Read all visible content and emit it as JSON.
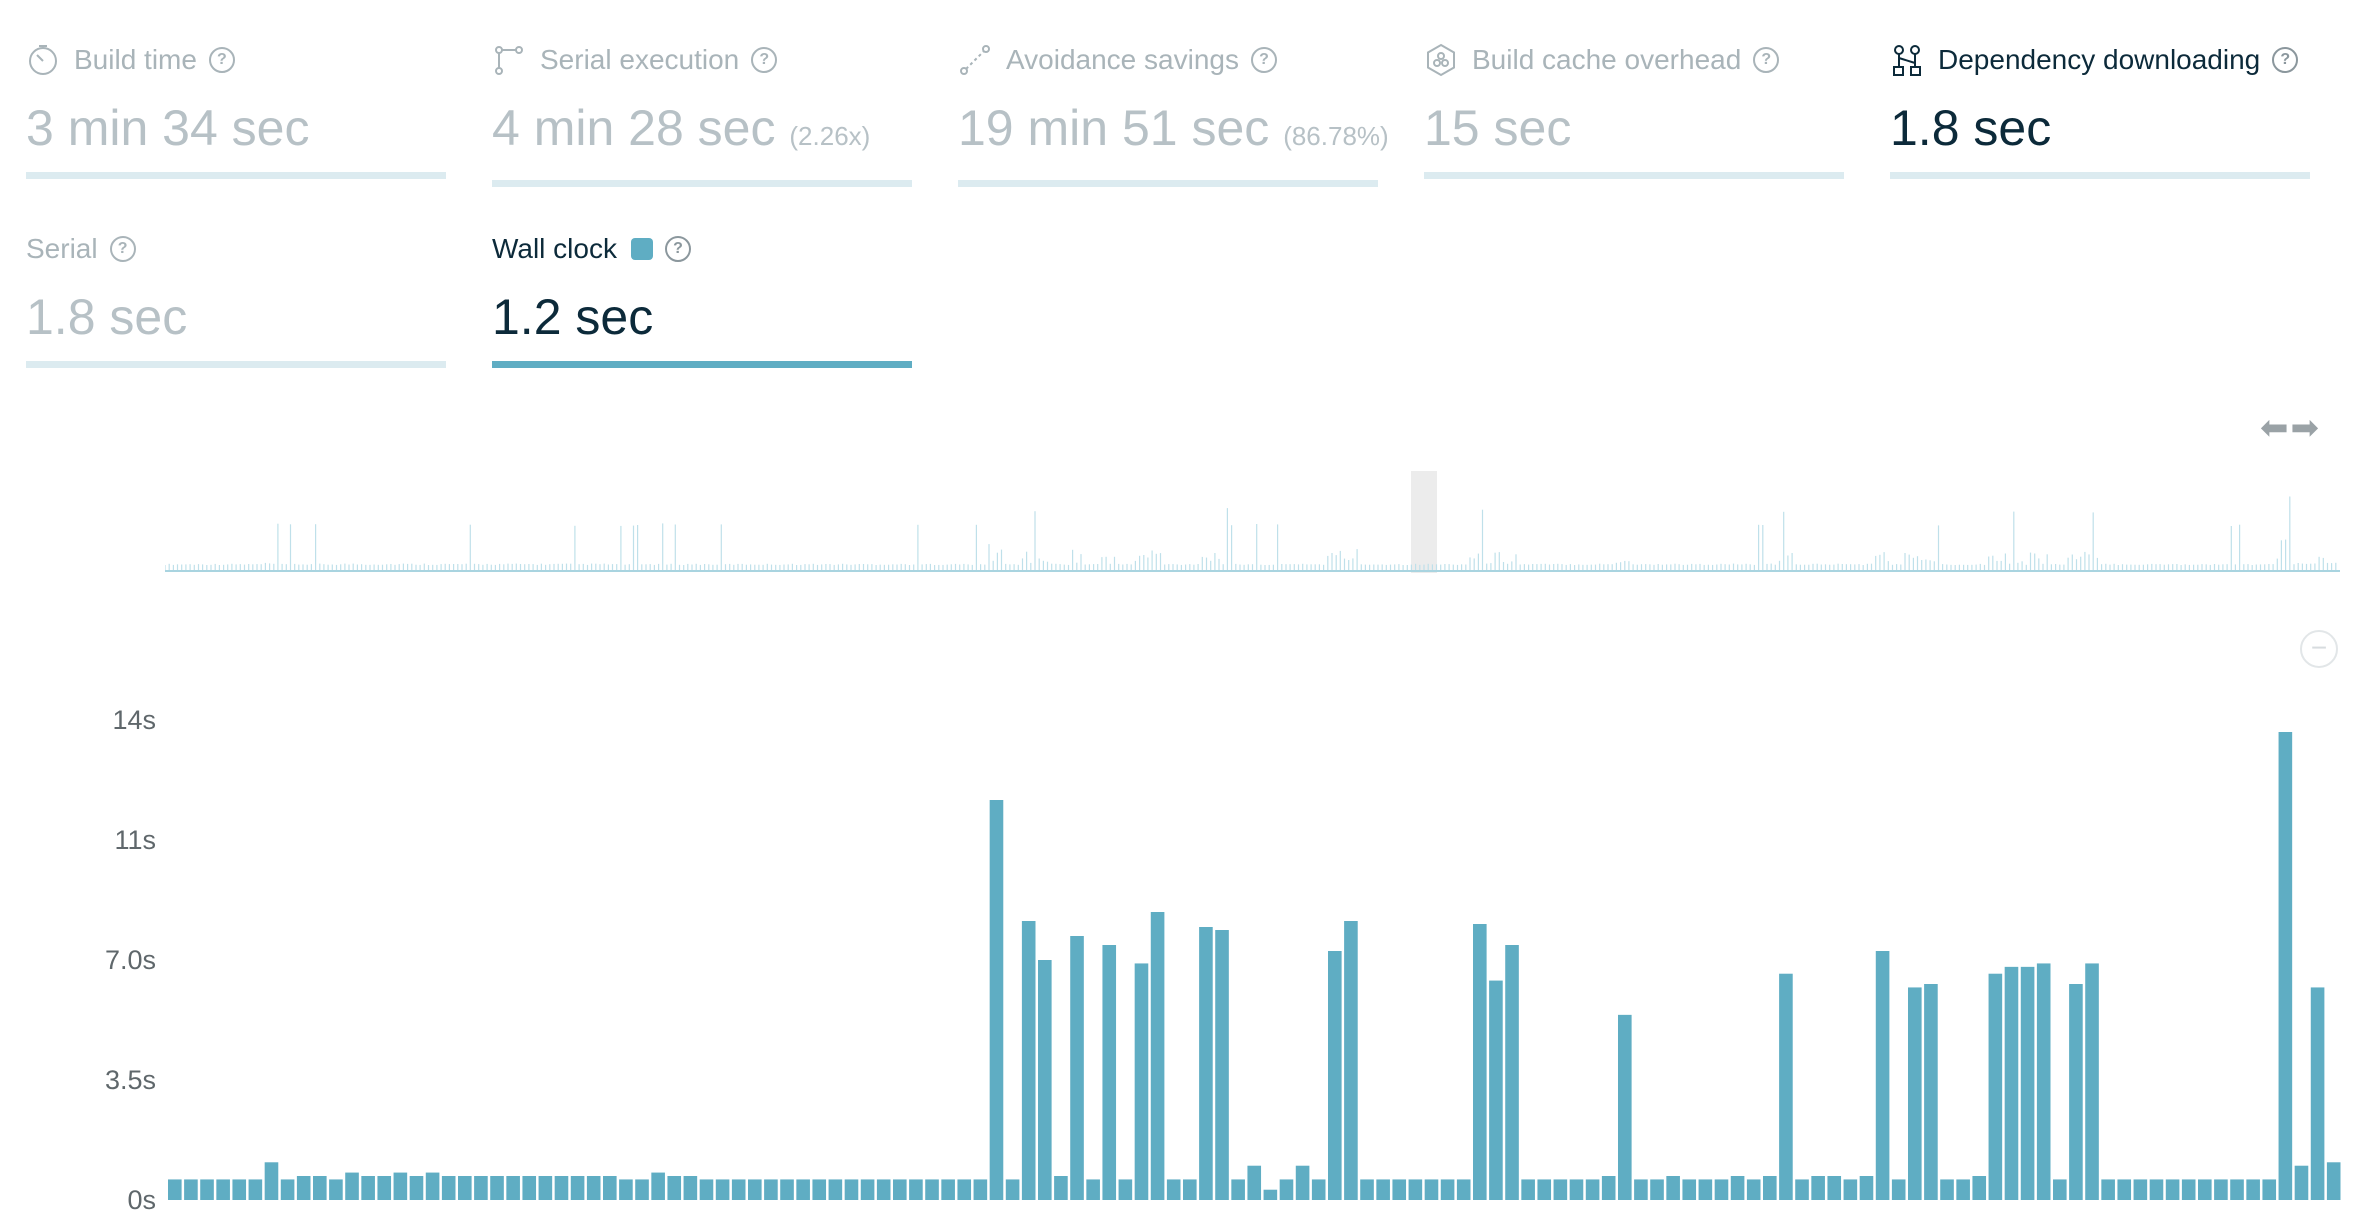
{
  "metrics": [
    {
      "title": "Build time",
      "icon": "stopwatch-icon",
      "value": "3 min 34 sec",
      "sub": ""
    },
    {
      "title": "Serial execution",
      "icon": "serial-path-icon",
      "value": "4 min 28 sec",
      "sub": "(2.26x)"
    },
    {
      "title": "Avoidance savings",
      "icon": "avoidance-path-icon",
      "value": "19 min 51 sec",
      "sub": "(86.78%)"
    },
    {
      "title": "Build cache overhead",
      "icon": "cache-hexagon-icon",
      "value": "15 sec",
      "sub": ""
    },
    {
      "title": "Dependency downloading",
      "icon": "dependency-nodes-icon",
      "value": "1.8 sec",
      "sub": ""
    },
    {
      "title": "Serial",
      "icon": "",
      "value": "1.8 sec",
      "sub": ""
    },
    {
      "title": "Wall clock",
      "icon": "",
      "value": "1.2 sec",
      "sub": ""
    }
  ],
  "help_glyph": "?",
  "scroll_arrows": "⬅➡",
  "zoom_out_glyph": "−",
  "colors": {
    "accent": "#5fadc3",
    "muted_text": "#a9b4b9",
    "active_text": "#0c2a3a",
    "bar_track": "#dcebf0",
    "overview_line": "#bfe0ea"
  },
  "chart_data": {
    "type": "bar",
    "title": "",
    "xlabel": "",
    "ylabel": "",
    "ylim": [
      0,
      14
    ],
    "yticks": [
      0,
      3.5,
      7.0,
      11,
      14
    ],
    "ytick_labels": [
      "0s",
      "3.5s",
      "7.0s",
      "11s",
      "14s"
    ],
    "series": [
      {
        "name": "Wall clock",
        "color": "#5fadc3",
        "values": [
          0.6,
          0.6,
          0.6,
          0.6,
          0.6,
          0.6,
          1.1,
          0.6,
          0.7,
          0.7,
          0.6,
          0.8,
          0.7,
          0.7,
          0.8,
          0.7,
          0.8,
          0.7,
          0.7,
          0.7,
          0.7,
          0.7,
          0.7,
          0.7,
          0.7,
          0.7,
          0.7,
          0.7,
          0.6,
          0.6,
          0.8,
          0.7,
          0.7,
          0.6,
          0.6,
          0.6,
          0.6,
          0.6,
          0.6,
          0.6,
          0.6,
          0.6,
          0.6,
          0.6,
          0.6,
          0.6,
          0.6,
          0.6,
          0.6,
          0.6,
          0.6,
          12.0,
          0.6,
          8.3,
          7.0,
          0.7,
          7.8,
          0.6,
          7.5,
          0.6,
          6.9,
          8.6,
          0.6,
          0.6,
          8.1,
          8.0,
          0.6,
          1.0,
          0.3,
          0.6,
          1.0,
          0.6,
          7.3,
          8.3,
          0.6,
          0.6,
          0.6,
          0.6,
          0.6,
          0.6,
          0.6,
          8.2,
          6.4,
          7.5,
          0.6,
          0.6,
          0.6,
          0.6,
          0.6,
          0.7,
          5.4,
          0.6,
          0.6,
          0.7,
          0.6,
          0.6,
          0.6,
          0.7,
          0.6,
          0.7,
          6.6,
          0.6,
          0.7,
          0.7,
          0.6,
          0.7,
          7.3,
          0.6,
          6.2,
          6.3,
          0.6,
          0.6,
          0.7,
          6.6,
          6.8,
          6.8,
          6.9,
          0.6,
          6.3,
          6.9,
          0.6,
          0.6,
          0.6,
          0.6,
          0.6,
          0.6,
          0.6,
          0.6,
          0.6,
          0.6,
          0.6,
          13.7,
          1.0,
          6.2,
          1.1
        ]
      }
    ]
  }
}
